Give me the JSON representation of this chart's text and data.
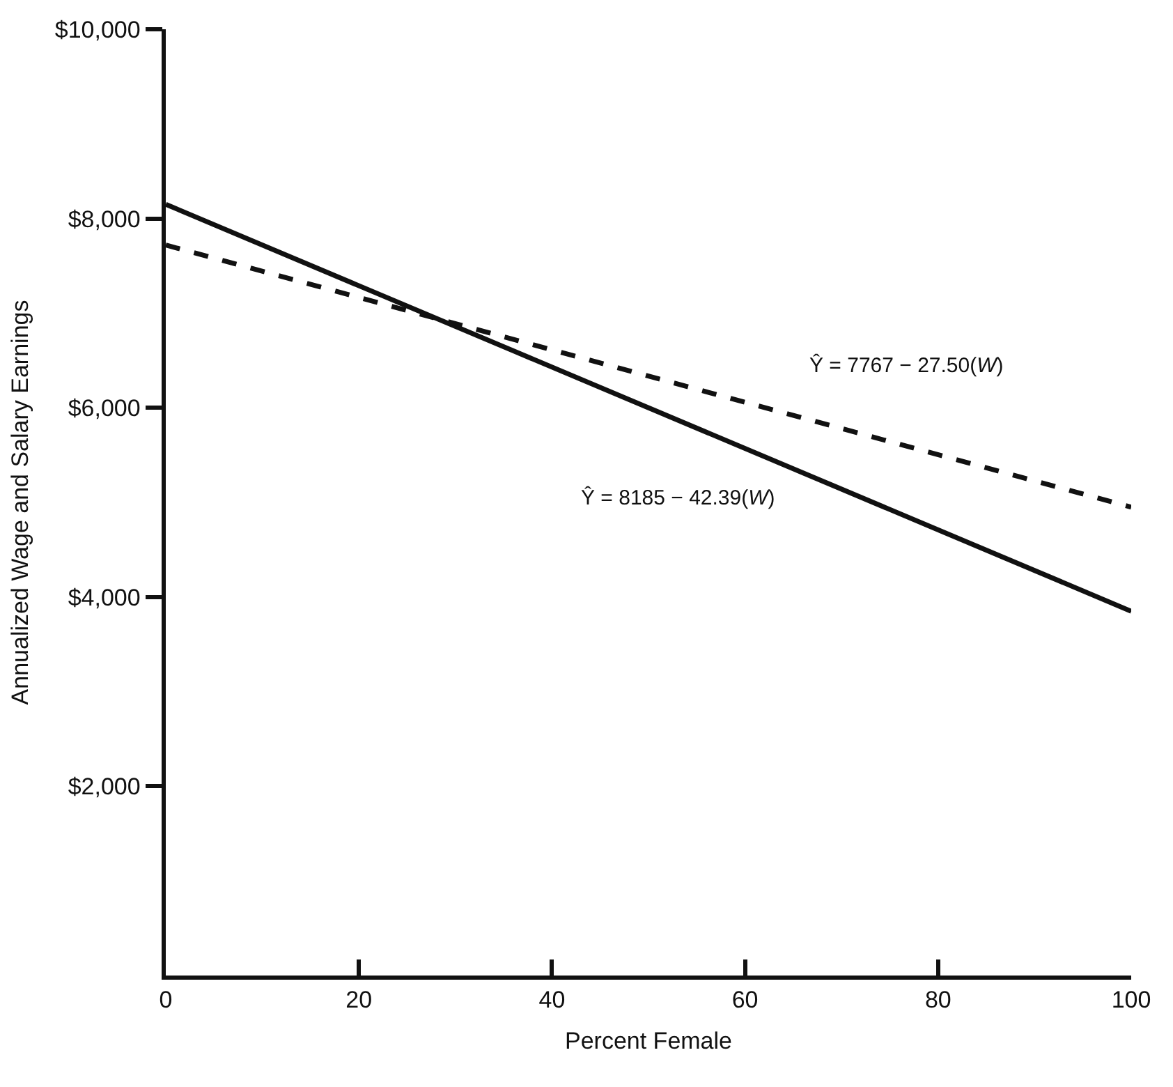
{
  "chart_data": {
    "type": "line",
    "xlabel": "Percent Female",
    "ylabel": "Annualized Wage and Salary Earnings",
    "x": [
      0,
      100
    ],
    "series": [
      {
        "color": "#111111",
        "values": [
          8150,
          3850
        ],
        "line_style": "solid"
      },
      {
        "color": "#111111",
        "values": [
          7720,
          4950
        ],
        "line_style": "dashed"
      }
    ],
    "xlim": [
      0,
      100
    ],
    "xticks": [
      0,
      20,
      40,
      60,
      80,
      100
    ],
    "ylim": [
      0,
      10000
    ],
    "yticks": [
      {
        "value": 2000,
        "label": "$2,000"
      },
      {
        "value": 4000,
        "label": "$4,000"
      },
      {
        "value": 6000,
        "label": "$6,000"
      },
      {
        "value": 8000,
        "label": "$8,000"
      },
      {
        "value": 10000,
        "label": "$10,000"
      }
    ],
    "annotations": [
      "Ŷ = 7767 − 27.50(W)",
      "Ŷ = 8185 − 42.39(W)"
    ],
    "marker": "none"
  }
}
